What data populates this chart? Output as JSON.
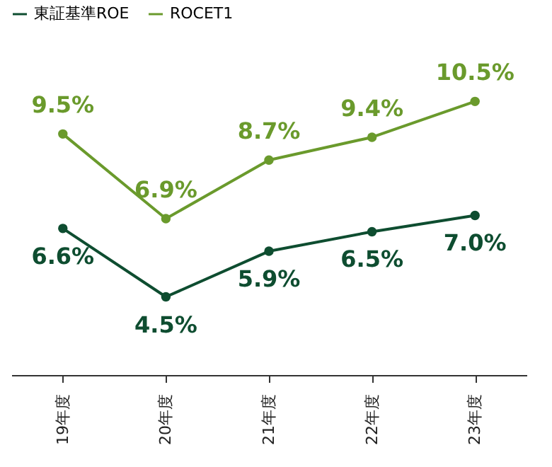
{
  "chart_data": {
    "type": "line",
    "categories": [
      "19年度",
      "20年度",
      "21年度",
      "22年度",
      "23年度"
    ],
    "series": [
      {
        "name": "東証基準ROE",
        "color": "#0e4d30",
        "values": [
          6.6,
          4.5,
          5.9,
          6.5,
          7.0
        ],
        "value_labels": [
          "6.6%",
          "4.5%",
          "5.9%",
          "6.5%",
          "7.0%"
        ]
      },
      {
        "name": "ROCET1",
        "color": "#6a9a2c",
        "values": [
          9.5,
          6.9,
          8.7,
          9.4,
          10.5
        ],
        "value_labels": [
          "9.5%",
          "6.9%",
          "8.7%",
          "9.4%",
          "10.5%"
        ]
      }
    ],
    "marker": "circle",
    "legend": "top",
    "grid": false,
    "tick_labels": "x"
  }
}
